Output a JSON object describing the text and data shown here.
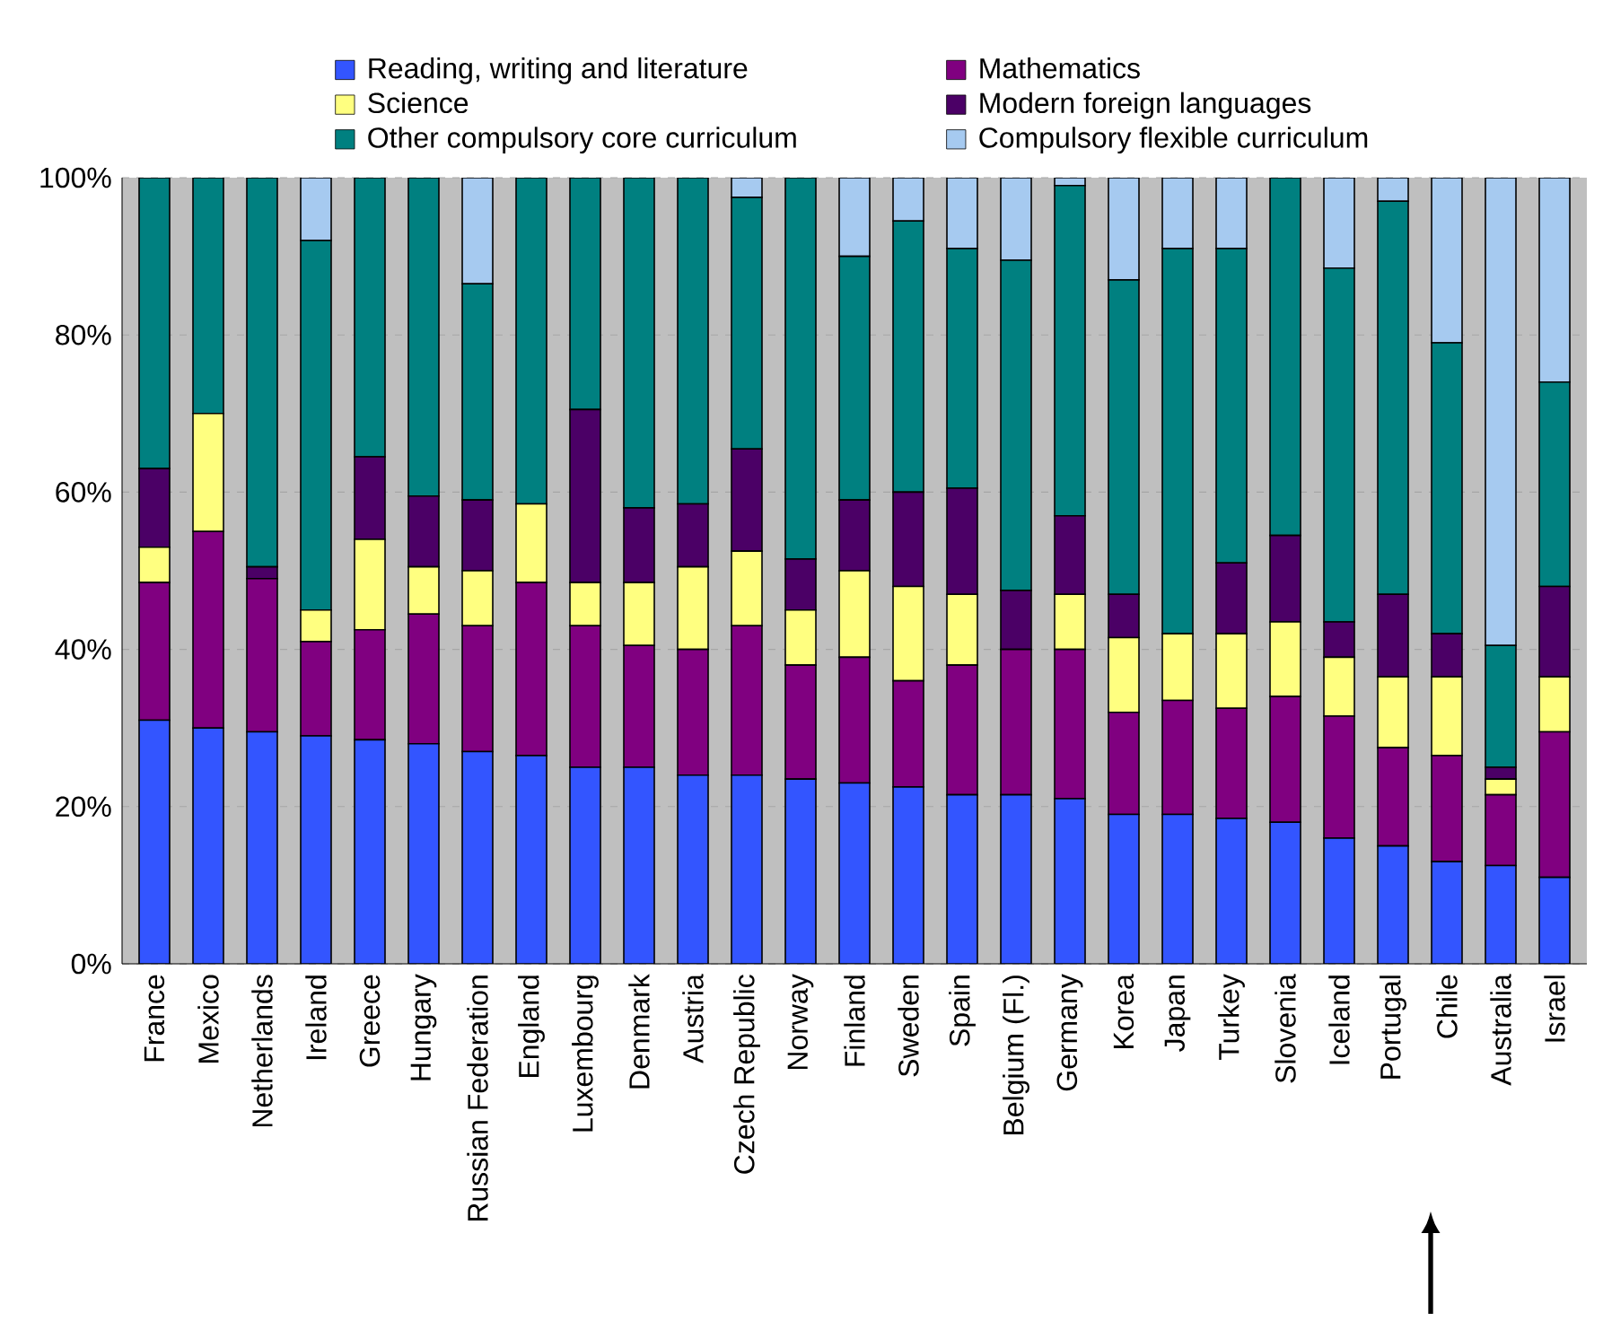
{
  "chart_data": {
    "type": "bar",
    "stacked": true,
    "categories": [
      "France",
      "Mexico",
      "Netherlands",
      "Ireland",
      "Greece",
      "Hungary",
      "Russian Federation",
      "England",
      "Luxembourg",
      "Denmark",
      "Austria",
      "Czech Republic",
      "Norway",
      "Finland",
      "Sweden",
      "Spain",
      "Belgium (Fl.)",
      "Germany",
      "Korea",
      "Japan",
      "Turkey",
      "Slovenia",
      "Iceland",
      "Portugal",
      "Chile",
      "Australia",
      "Israel"
    ],
    "series": [
      {
        "name": "Reading, writing and literature",
        "color": "#3355ff",
        "values": [
          31,
          30,
          29.5,
          29,
          28.5,
          28,
          27,
          26.5,
          25,
          25,
          24,
          24,
          23.5,
          23,
          22.5,
          21.5,
          21.5,
          21,
          19,
          19,
          18.5,
          18,
          16,
          15,
          13,
          12.5,
          11
        ]
      },
      {
        "name": "Mathematics",
        "color": "#800080",
        "values": [
          17.5,
          25,
          19.5,
          12,
          14,
          16.5,
          16,
          22,
          18,
          15.5,
          16,
          19,
          14.5,
          16,
          13.5,
          16.5,
          18.5,
          19,
          13,
          14.5,
          14,
          16,
          15.5,
          12.5,
          13.5,
          9,
          18.5
        ]
      },
      {
        "name": "Science",
        "color": "#ffff80",
        "values": [
          4.5,
          15,
          0,
          4,
          11.5,
          6,
          7,
          10,
          5.5,
          8,
          10.5,
          9.5,
          7,
          11,
          12,
          9,
          0,
          7,
          9.5,
          8.5,
          9.5,
          9.5,
          7.5,
          9,
          10,
          2,
          7
        ]
      },
      {
        "name": "Modern foreign languages",
        "color": "#4b0066",
        "values": [
          10,
          0,
          1.5,
          0,
          10.5,
          9,
          9,
          0,
          22,
          9.5,
          8,
          13,
          6.5,
          9,
          12,
          13.5,
          7.5,
          10,
          5.5,
          0,
          9,
          11,
          4.5,
          10.5,
          5.5,
          1.5,
          11.5
        ]
      },
      {
        "name": "Other compulsory core curriculum",
        "color": "#008080",
        "values": [
          37,
          30,
          49.5,
          47,
          35.5,
          40.5,
          27.5,
          41.5,
          29.5,
          42,
          41.5,
          32,
          48.5,
          31,
          34.5,
          30.5,
          42,
          42,
          40,
          49,
          40,
          45.5,
          45,
          50,
          37,
          15.5,
          26
        ]
      },
      {
        "name": "Compulsory flexible curriculum",
        "color": "#a6caf0",
        "values": [
          0,
          0,
          0,
          8,
          0,
          0,
          13.5,
          0,
          0,
          0,
          0,
          2.5,
          0,
          10,
          5.5,
          9,
          10.5,
          1,
          13,
          9,
          9,
          0,
          11.5,
          3,
          21,
          59.5,
          26
        ]
      }
    ],
    "ylim": [
      0,
      100
    ],
    "yticks": [
      {
        "value": 0,
        "label": "0%"
      },
      {
        "value": 20,
        "label": "20%"
      },
      {
        "value": 40,
        "label": "40%"
      },
      {
        "value": 60,
        "label": "60%"
      },
      {
        "value": 80,
        "label": "80%"
      },
      {
        "value": 100,
        "label": "100%"
      }
    ],
    "grid": "y",
    "legend": "top"
  }
}
